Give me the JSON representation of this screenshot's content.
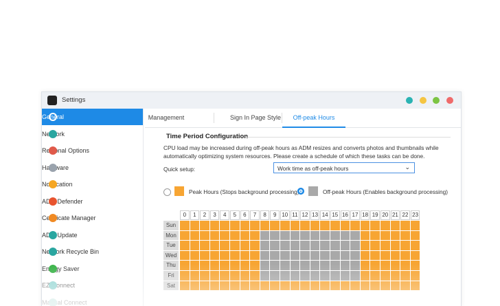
{
  "window": {
    "title": "Settings"
  },
  "sidebar": {
    "items": [
      "General",
      "Network",
      "Regional Options",
      "Hardware",
      "Notification",
      "ADM Defender",
      "Certificate Manager",
      "ADM Update",
      "Network Recycle Bin",
      "Energy Saver",
      "EZ-Connect",
      "Manual Connect"
    ]
  },
  "tabs": [
    "Management",
    "Sign In Page Style",
    "Off-peak Hours"
  ],
  "section": {
    "title": "Time Period Configuration",
    "description": [
      "CPU load may be increased during off-peak hours as ADM resizes and converts photos and thumbnails while",
      "automatically optimizing system resources. Please create a schedule of which these tasks can be done."
    ]
  },
  "quick_setup": {
    "label": "Quick setup:",
    "value": "Work time as off-peak hours"
  },
  "legend": [
    "Peak Hours (Stops background processing)",
    "Off-peak Hours (Enables background processing)"
  ],
  "schedule": {
    "hours": [
      0,
      1,
      2,
      3,
      4,
      5,
      6,
      7,
      8,
      9,
      10,
      11,
      12,
      13,
      14,
      15,
      16,
      17,
      18,
      19,
      20,
      21,
      22,
      23
    ],
    "days": [
      "Sun",
      "Mon",
      "Tue",
      "Wed",
      "Thu",
      "Fri",
      "Sat"
    ]
  }
}
